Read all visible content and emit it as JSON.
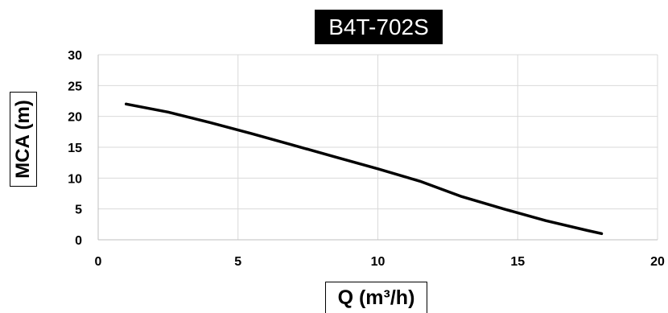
{
  "chart_data": {
    "type": "line",
    "title": "B4T-702S",
    "xlabel": "Q (m³/h)",
    "ylabel": "MCA (m)",
    "xlim": [
      0,
      20
    ],
    "ylim": [
      0,
      30
    ],
    "xticks": [
      "0",
      "5",
      "10",
      "15",
      "20"
    ],
    "yticks": [
      "0",
      "5",
      "10",
      "15",
      "20",
      "25",
      "30"
    ],
    "grid": true,
    "series": [
      {
        "color": "#000000",
        "x": [
          1,
          2.5,
          4,
          5.5,
          7,
          8.5,
          10,
          11.5,
          13,
          14.5,
          16,
          17.5,
          18
        ],
        "y": [
          22,
          20.7,
          19,
          17.2,
          15.3,
          13.4,
          11.5,
          9.5,
          7,
          5,
          3.1,
          1.5,
          1
        ]
      }
    ]
  }
}
